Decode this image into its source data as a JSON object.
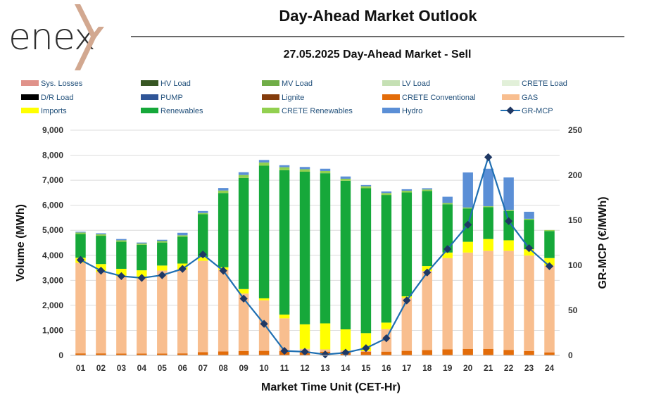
{
  "brand": {
    "name": "enex"
  },
  "header": {
    "title": "Day-Ahead Market Outlook",
    "subtitle": "27.05.2025  Day-Ahead Market - Sell"
  },
  "colors": {
    "Sys. Losses": "#e0928a",
    "HV Load": "#375623",
    "MV Load": "#70ad47",
    "LV Load": "#c5e0b4",
    "CRETE Load": "#e2f0d9",
    "D/R Load": "#000000",
    "PUMP": "#2f5597",
    "Lignite": "#843c0c",
    "CRETE Conventional": "#e36c09",
    "GAS": "#f8be8f",
    "Imports": "#ffff00",
    "Renewables": "#16a83a",
    "CRETE Renewables": "#92d050",
    "Hydro": "#5b8fd6",
    "GR-MCP": "#1f6fb2",
    "marker": "#1f3864"
  },
  "chart_data": {
    "type": "bar",
    "stacked": true,
    "title": "27.05.2025  Day-Ahead Market - Sell",
    "xlabel": "Market Time Unit (CET-Hr)",
    "ylabel": "Volume (MWh)",
    "y2label": "GR-MCP (€/MWh)",
    "ylim": [
      0,
      9000
    ],
    "y2lim": [
      0,
      250
    ],
    "yticks": [
      "0",
      "1,000",
      "2,000",
      "3,000",
      "4,000",
      "5,000",
      "6,000",
      "7,000",
      "8,000",
      "9,000"
    ],
    "y2ticks": [
      "0",
      "50",
      "100",
      "150",
      "200",
      "250"
    ],
    "categories": [
      "01",
      "02",
      "03",
      "04",
      "05",
      "06",
      "07",
      "08",
      "09",
      "10",
      "11",
      "12",
      "13",
      "14",
      "15",
      "16",
      "17",
      "18",
      "19",
      "20",
      "21",
      "22",
      "23",
      "24"
    ],
    "legend": [
      "Sys. Losses",
      "HV Load",
      "MV Load",
      "LV Load",
      "CRETE Load",
      "D/R Load",
      "PUMP",
      "Lignite",
      "CRETE Conventional",
      "GAS",
      "Imports",
      "Renewables",
      "CRETE Renewables",
      "Hydro",
      "GR-MCP"
    ],
    "series": [
      {
        "name": "CRETE Conventional",
        "values": [
          80,
          80,
          70,
          70,
          70,
          80,
          130,
          160,
          170,
          180,
          170,
          160,
          150,
          150,
          150,
          150,
          180,
          210,
          240,
          260,
          260,
          220,
          170,
          120
        ]
      },
      {
        "name": "GAS",
        "values": [
          3620,
          3250,
          3090,
          3000,
          3320,
          3340,
          3650,
          3260,
          2300,
          2020,
          1310,
          100,
          90,
          50,
          20,
          900,
          2120,
          3160,
          3650,
          3850,
          3920,
          3960,
          3820,
          3470
        ]
      },
      {
        "name": "Imports",
        "values": [
          200,
          320,
          300,
          330,
          200,
          250,
          150,
          100,
          180,
          80,
          150,
          980,
          1040,
          840,
          720,
          260,
          60,
          200,
          220,
          430,
          470,
          420,
          250,
          300
        ]
      },
      {
        "name": "Renewables",
        "values": [
          950,
          1130,
          1080,
          1020,
          920,
          1070,
          1710,
          2970,
          4440,
          5300,
          5770,
          6100,
          6000,
          5940,
          5790,
          5100,
          4150,
          3000,
          1930,
          1330,
          1270,
          1170,
          1180,
          1080
        ]
      },
      {
        "name": "CRETE Renewables",
        "values": [
          60,
          60,
          60,
          50,
          60,
          60,
          50,
          100,
          120,
          130,
          120,
          100,
          90,
          80,
          80,
          80,
          70,
          60,
          50,
          40,
          40,
          40,
          40,
          40
        ]
      },
      {
        "name": "Hydro",
        "values": [
          30,
          40,
          50,
          40,
          50,
          100,
          80,
          100,
          110,
          100,
          80,
          90,
          90,
          90,
          50,
          60,
          60,
          50,
          250,
          1400,
          1500,
          1300,
          280,
          0
        ]
      }
    ],
    "line": {
      "name": "GR-MCP",
      "values": [
        106,
        94,
        88,
        86,
        89,
        96,
        112,
        94,
        63,
        35,
        5,
        4,
        1,
        3,
        8,
        19,
        61,
        92,
        118,
        145,
        220,
        149,
        119,
        99
      ]
    }
  }
}
